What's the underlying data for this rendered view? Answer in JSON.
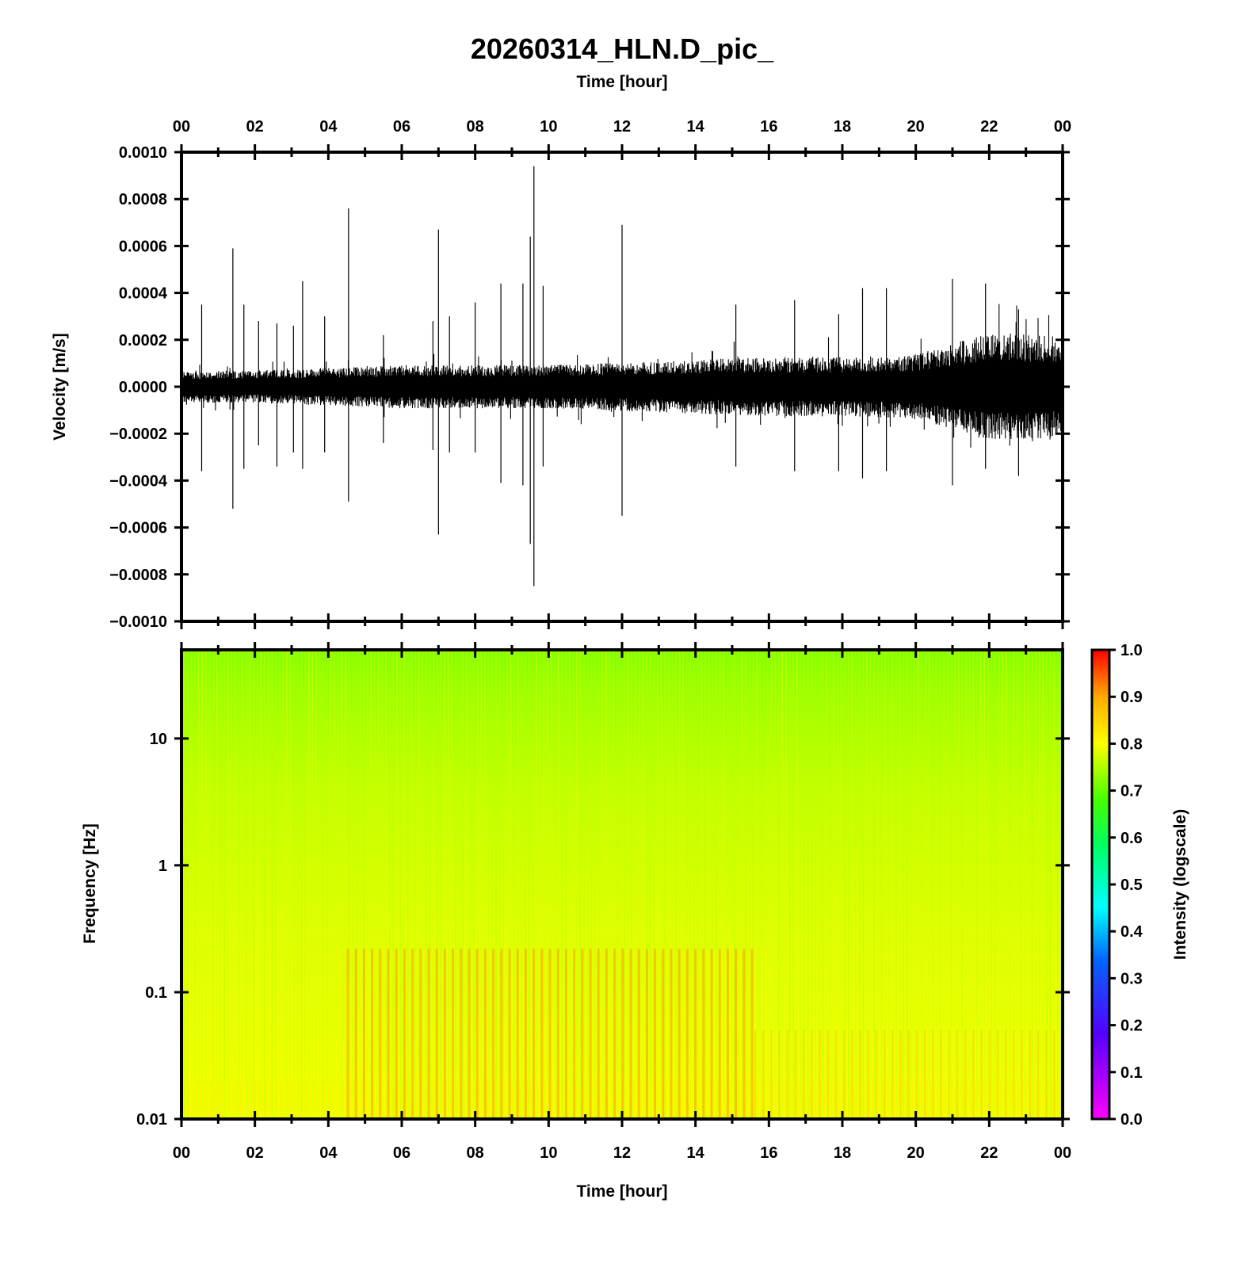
{
  "chart_data": [
    {
      "type": "line",
      "title": "20260314_HLN.D_pic_",
      "xlabel": "Time [hour]",
      "ylabel": "Velocity [m/s]",
      "x_ticks": [
        "00",
        "02",
        "04",
        "06",
        "08",
        "10",
        "12",
        "14",
        "16",
        "18",
        "20",
        "22",
        "00"
      ],
      "xlim": [
        0,
        24
      ],
      "y_ticks": [
        "0.0010",
        "0.0008",
        "0.0006",
        "0.0004",
        "0.0002",
        "0.0000",
        "−0.0002",
        "−0.0004",
        "−0.0006",
        "−0.0008",
        "−0.0010"
      ],
      "ylim": [
        -0.001,
        0.001
      ],
      "series": [
        {
          "color": "#000000",
          "noise_envelope": [
            [
              0,
              6e-05
            ],
            [
              2,
              6e-05
            ],
            [
              4,
              7e-05
            ],
            [
              6,
              8e-05
            ],
            [
              8,
              8e-05
            ],
            [
              10,
              8e-05
            ],
            [
              12,
              9e-05
            ],
            [
              14,
              0.0001
            ],
            [
              16,
              0.00011
            ],
            [
              18,
              0.00011
            ],
            [
              20,
              0.00012
            ],
            [
              21,
              0.00016
            ],
            [
              22,
              0.0002
            ],
            [
              24,
              0.00019
            ]
          ],
          "spikes": [
            {
              "t": 0.55,
              "max": 0.00035,
              "min": -0.00036
            },
            {
              "t": 1.4,
              "max": 0.00059,
              "min": -0.00052
            },
            {
              "t": 1.7,
              "max": 0.00035,
              "min": -0.00035
            },
            {
              "t": 2.1,
              "max": 0.00028,
              "min": -0.00025
            },
            {
              "t": 2.6,
              "max": 0.00027,
              "min": -0.00034
            },
            {
              "t": 3.05,
              "max": 0.00026,
              "min": -0.00028
            },
            {
              "t": 3.3,
              "max": 0.00045,
              "min": -0.00035
            },
            {
              "t": 3.9,
              "max": 0.0003,
              "min": -0.00028
            },
            {
              "t": 4.55,
              "max": 0.00076,
              "min": -0.00049
            },
            {
              "t": 5.5,
              "max": 0.00022,
              "min": -0.00024
            },
            {
              "t": 6.85,
              "max": 0.00028,
              "min": -0.00027
            },
            {
              "t": 7.0,
              "max": 0.00067,
              "min": -0.00063
            },
            {
              "t": 7.3,
              "max": 0.0003,
              "min": -0.00028
            },
            {
              "t": 8.0,
              "max": 0.00036,
              "min": -0.00028
            },
            {
              "t": 8.7,
              "max": 0.00044,
              "min": -0.00041
            },
            {
              "t": 9.3,
              "max": 0.00044,
              "min": -0.00042
            },
            {
              "t": 9.5,
              "max": 0.00064,
              "min": -0.00067
            },
            {
              "t": 9.6,
              "max": 0.00094,
              "min": -0.00085
            },
            {
              "t": 9.85,
              "max": 0.00043,
              "min": -0.00034
            },
            {
              "t": 12.0,
              "max": 0.00069,
              "min": -0.00055
            },
            {
              "t": 15.1,
              "max": 0.00035,
              "min": -0.00034
            },
            {
              "t": 16.7,
              "max": 0.00037,
              "min": -0.00036
            },
            {
              "t": 17.9,
              "max": 0.00031,
              "min": -0.00036
            },
            {
              "t": 18.55,
              "max": 0.00042,
              "min": -0.00039
            },
            {
              "t": 19.2,
              "max": 0.00042,
              "min": -0.00036
            },
            {
              "t": 21.0,
              "max": 0.00046,
              "min": -0.00042
            },
            {
              "t": 21.9,
              "max": 0.00044,
              "min": -0.00035
            },
            {
              "t": 22.8,
              "max": 0.00033,
              "min": -0.00038
            }
          ]
        }
      ]
    },
    {
      "type": "heatmap",
      "xlabel": "Time [hour]",
      "ylabel": "Frequency [Hz]",
      "x_ticks": [
        "00",
        "02",
        "04",
        "06",
        "08",
        "10",
        "12",
        "14",
        "16",
        "18",
        "20",
        "22",
        "00"
      ],
      "xlim": [
        0,
        24
      ],
      "y_scale": "log",
      "ylim": [
        0.01,
        50
      ],
      "y_ticks": [
        "10",
        "1",
        "0.1",
        "0.01"
      ],
      "colorbar": {
        "label": "Intensity (logscale)",
        "range": [
          0.0,
          1.0
        ],
        "ticks": [
          "1.0",
          "0.9",
          "0.8",
          "0.7",
          "0.6",
          "0.5",
          "0.4",
          "0.3",
          "0.2",
          "0.1",
          "0.0"
        ],
        "colormap": "gist_rainbow_r"
      },
      "intensity_profile": [
        {
          "hz": 50,
          "intensity": 0.7
        },
        {
          "hz": 10,
          "intensity": 0.74
        },
        {
          "hz": 1,
          "intensity": 0.76
        },
        {
          "hz": 0.1,
          "intensity": 0.8
        },
        {
          "hz": 0.01,
          "intensity": 0.84
        }
      ],
      "elevated_band": {
        "t_start": 4.5,
        "t_end": 15.6,
        "hz_max": 0.22,
        "intensity": 0.9
      }
    }
  ]
}
